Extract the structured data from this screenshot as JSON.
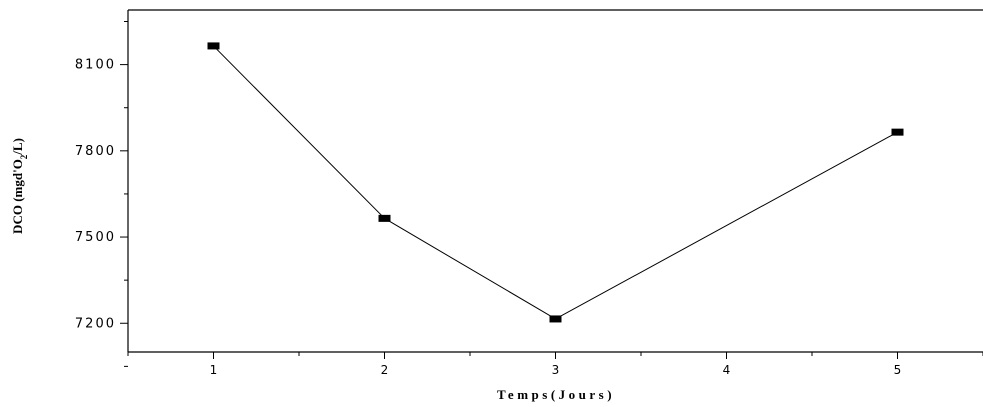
{
  "chart_data": {
    "type": "line",
    "x": [
      1,
      2,
      3,
      4,
      5
    ],
    "series": [
      {
        "x": [
          1,
          2,
          3,
          5
        ],
        "values": [
          8165,
          7565,
          7215,
          7865
        ]
      }
    ],
    "xlim": [
      0.5,
      5.5
    ],
    "ylim": [
      7100,
      8290
    ],
    "xticks": [
      1,
      2,
      3,
      4,
      5
    ],
    "xtick_labels": [
      "1",
      "2",
      "3",
      "4",
      "5"
    ],
    "yticks": [
      7200,
      7500,
      7800,
      8100
    ],
    "ytick_labels": [
      "7200",
      "7500",
      "7800",
      "8100"
    ],
    "xlabel": "Temps(Jours)",
    "ylabel_main": "DCO (mgd'O",
    "ylabel_sub": "2",
    "ylabel_end": "/L)",
    "grid": false,
    "marker": "rectangle",
    "line_color": "#000000",
    "marker_color": "#000000"
  }
}
